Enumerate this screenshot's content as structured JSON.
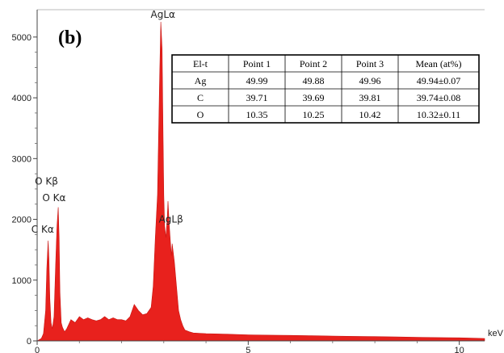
{
  "chart_data": {
    "type": "area",
    "panel_label": "(b)",
    "x_unit": "keV",
    "xlim": [
      0,
      10.6
    ],
    "ylim": [
      0,
      5450
    ],
    "x_ticks": [
      0,
      5,
      10
    ],
    "x_tick_labels": [
      "0",
      "5",
      "10"
    ],
    "y_ticks": [
      0,
      1000,
      2000,
      3000,
      4000,
      5000
    ],
    "y_tick_labels": [
      "0",
      "1000",
      "2000",
      "3000",
      "4000",
      "5000"
    ],
    "fill_color": "#e8211d",
    "spectrum": {
      "x": [
        0.0,
        0.05,
        0.1,
        0.15,
        0.2,
        0.23,
        0.26,
        0.28,
        0.3,
        0.33,
        0.36,
        0.4,
        0.44,
        0.47,
        0.5,
        0.52,
        0.54,
        0.57,
        0.6,
        0.65,
        0.7,
        0.8,
        0.9,
        1.0,
        1.1,
        1.2,
        1.3,
        1.4,
        1.5,
        1.6,
        1.7,
        1.8,
        1.9,
        2.0,
        2.1,
        2.2,
        2.3,
        2.4,
        2.5,
        2.6,
        2.7,
        2.75,
        2.8,
        2.85,
        2.9,
        2.93,
        2.96,
        2.98,
        3.0,
        3.02,
        3.05,
        3.08,
        3.1,
        3.13,
        3.15,
        3.18,
        3.2,
        3.25,
        3.3,
        3.35,
        3.4,
        3.45,
        3.5,
        3.6,
        3.7,
        4.0,
        4.5,
        5.0,
        5.5,
        6.0,
        6.5,
        7.0,
        7.5,
        8.0,
        8.5,
        9.0,
        9.5,
        10.0,
        10.3,
        10.6
      ],
      "y": [
        0,
        20,
        40,
        120,
        500,
        1200,
        1650,
        1350,
        700,
        300,
        200,
        400,
        1300,
        1900,
        2200,
        1700,
        800,
        300,
        220,
        150,
        200,
        350,
        300,
        400,
        350,
        380,
        350,
        330,
        350,
        400,
        350,
        380,
        350,
        350,
        330,
        400,
        600,
        500,
        430,
        450,
        550,
        900,
        1700,
        2400,
        4300,
        5250,
        4800,
        3600,
        2400,
        1900,
        1700,
        2000,
        2300,
        1900,
        1700,
        1400,
        1600,
        1300,
        900,
        500,
        350,
        250,
        180,
        150,
        130,
        120,
        110,
        100,
        95,
        90,
        85,
        80,
        75,
        70,
        65,
        60,
        55,
        50,
        45,
        40
      ]
    },
    "peak_labels": [
      {
        "text": "AgLα",
        "x": 2.98,
        "y": 5320
      },
      {
        "text": "O Kβ",
        "x": 0.22,
        "y": 2570
      },
      {
        "text": "O Kα",
        "x": 0.4,
        "y": 2300
      },
      {
        "text": "C Kα",
        "x": 0.13,
        "y": 1780
      },
      {
        "text": "AgLβ",
        "x": 3.17,
        "y": 1950
      }
    ],
    "table": {
      "columns": [
        "El-t",
        "Point 1",
        "Point 2",
        "Point 3",
        "Mean (at%)"
      ],
      "rows": [
        [
          "Ag",
          "49.99",
          "49.88",
          "49.96",
          "49.94±0.07"
        ],
        [
          "C",
          "39.71",
          "39.69",
          "39.81",
          "39.74±0.08"
        ],
        [
          "O",
          "10.35",
          "10.25",
          "10.42",
          "10.32±0.11"
        ]
      ]
    }
  }
}
